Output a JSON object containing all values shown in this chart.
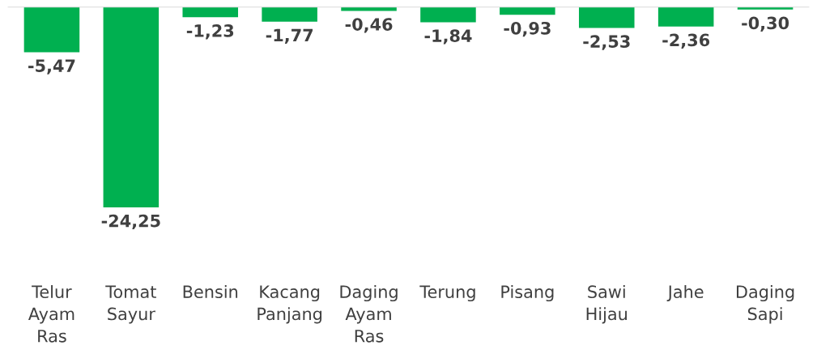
{
  "chart_data": {
    "type": "bar",
    "categories": [
      "Telur Ayam Ras",
      "Tomat Sayur",
      "Bensin",
      "Kacang Panjang",
      "Daging Ayam Ras",
      "Terung",
      "Pisang",
      "Sawi Hijau",
      "Jahe",
      "Daging Sapi"
    ],
    "values": [
      -5.47,
      -24.25,
      -1.23,
      -1.77,
      -0.46,
      -1.84,
      -0.93,
      -2.53,
      -2.36,
      -0.3
    ],
    "value_labels": [
      "-5,47",
      "-24,25",
      "-1,23",
      "-1,77",
      "-0,46",
      "-1,84",
      "-0,93",
      "-2,53",
      "-2,36",
      "-0,30"
    ],
    "color": "#00b050"
  }
}
